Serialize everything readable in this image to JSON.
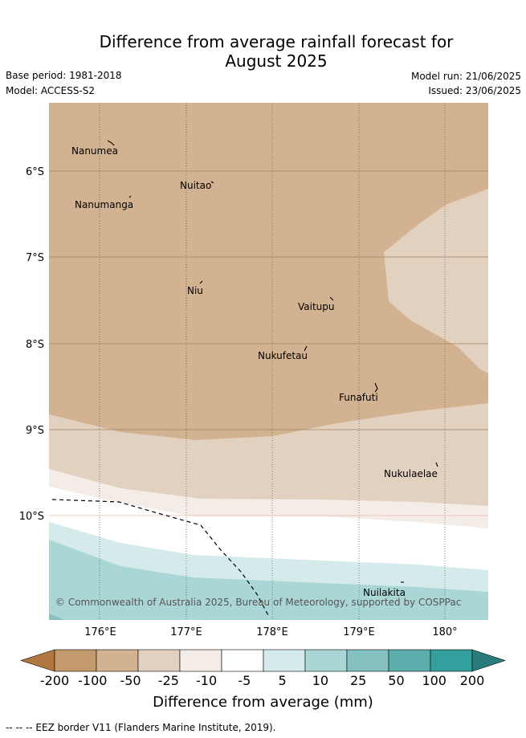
{
  "title_line1": "Difference from average rainfall forecast for",
  "title_line2": "August 2025",
  "base_period": "Base period: 1981-2018",
  "model": "Model: ACCESS-S2",
  "model_run": "Model run: 21/06/2025",
  "issued": "Issued: 23/06/2025",
  "copyright": "© Commonwealth of Australia 2025, Bureau of Meteorology, supported by COSPPac",
  "footnote": "-- -- -- EEZ border V11 (Flanders Marine Institute, 2019).",
  "colorbar": {
    "title": "Difference from average (mm)",
    "labels": [
      "-200",
      "-100",
      "-50",
      "-25",
      "-10",
      "-5",
      "5",
      "10",
      "25",
      "50",
      "100",
      "200"
    ],
    "colors": [
      "#b07840",
      "#c49a6c",
      "#d2b291",
      "#e3d1bf",
      "#f4ece6",
      "#ffffff",
      "#d5eaea",
      "#aad6d5",
      "#85c1c0",
      "#5caead",
      "#34a09e",
      "#2a7b7b"
    ]
  },
  "map": {
    "lon_ticks": [
      "176°E",
      "177°E",
      "178°E",
      "179°E",
      "180°"
    ],
    "lat_ticks": [
      "6°S",
      "7°S",
      "8°S",
      "9°S",
      "10°S"
    ],
    "places": [
      {
        "name": "Nanumea"
      },
      {
        "name": "Nuitao"
      },
      {
        "name": "Nanumanga"
      },
      {
        "name": "Niu"
      },
      {
        "name": "Vaitupu"
      },
      {
        "name": "Nukufetau"
      },
      {
        "name": "Funafuti"
      },
      {
        "name": "Nukulaelae"
      },
      {
        "name": "Nuilakita"
      }
    ]
  }
}
